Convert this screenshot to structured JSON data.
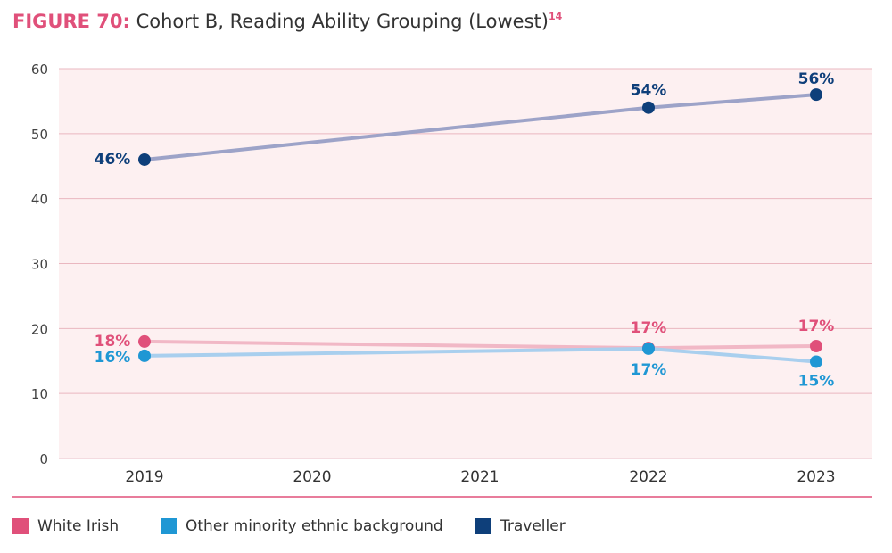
{
  "title": {
    "figure_label": "FIGURE 70:",
    "text": "Cohort B, Reading Ability Grouping (Lowest)",
    "footnote": "14"
  },
  "colors": {
    "white_irish": "#e0507a",
    "other_minority": "#1f97d4",
    "traveller": "#0e3f7a",
    "plot_background": "#fdf0f1",
    "gridline": "#eab7c0"
  },
  "chart_data": {
    "type": "line",
    "title": "Cohort B, Reading Ability Grouping (Lowest)",
    "xlabel": "",
    "ylabel": "",
    "categories": [
      "2019",
      "2020",
      "2021",
      "2022",
      "2023"
    ],
    "ylim": [
      0,
      60
    ],
    "yticks": [
      0,
      10,
      20,
      30,
      40,
      50,
      60
    ],
    "grid": true,
    "legend_position": "bottom",
    "series": [
      {
        "key": "white_irish",
        "name": "White Irish",
        "points": [
          {
            "x": "2019",
            "y": 18,
            "label": "18%"
          },
          {
            "x": "2022",
            "y": 17,
            "label": "17%"
          },
          {
            "x": "2023",
            "y": 17.3,
            "label": "17%"
          }
        ]
      },
      {
        "key": "other_minority",
        "name": "Other minority ethnic background",
        "points": [
          {
            "x": "2019",
            "y": 15.8,
            "label": "16%"
          },
          {
            "x": "2022",
            "y": 16.9,
            "label": "17%"
          },
          {
            "x": "2023",
            "y": 14.9,
            "label": "15%"
          }
        ]
      },
      {
        "key": "traveller",
        "name": "Traveller",
        "points": [
          {
            "x": "2019",
            "y": 46,
            "label": "46%"
          },
          {
            "x": "2022",
            "y": 54,
            "label": "54%"
          },
          {
            "x": "2023",
            "y": 56,
            "label": "56%"
          }
        ]
      }
    ]
  }
}
